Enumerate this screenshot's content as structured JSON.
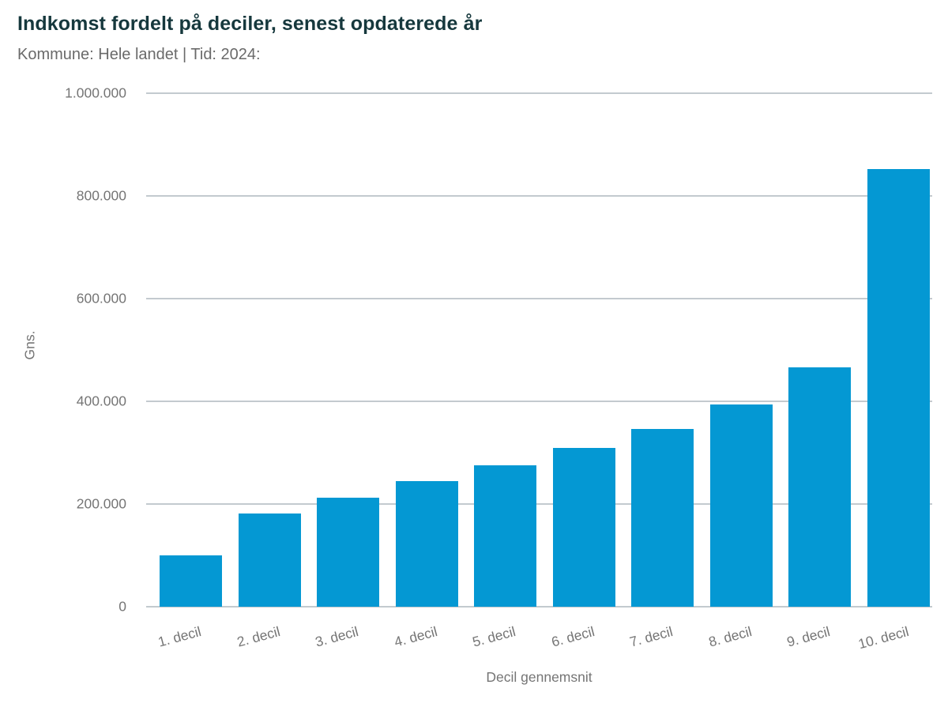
{
  "header": {
    "title": "Indkomst fordelt på deciler, senest opdaterede år",
    "subtitle": "Kommune: Hele landet | Tid: 2024:"
  },
  "chart_data": {
    "type": "bar",
    "title": "Indkomst fordelt på deciler, senest opdaterede år",
    "subtitle": "Kommune: Hele landet | Tid: 2024:",
    "categories": [
      "1. decil",
      "2. decil",
      "3. decil",
      "4. decil",
      "5. decil",
      "6. decil",
      "7. decil",
      "8. decil",
      "9. decil",
      "10. decil"
    ],
    "values": [
      100000,
      181000,
      212000,
      245000,
      276000,
      310000,
      346000,
      394000,
      466000,
      852000
    ],
    "xlabel": "Decil gennemsnit",
    "ylabel": "Gns.",
    "ylim": [
      0,
      1000000
    ],
    "ytick_interval": 200000,
    "yticks": [
      {
        "value": 0,
        "label": "0"
      },
      {
        "value": 200000,
        "label": "200.000"
      },
      {
        "value": 400000,
        "label": "400.000"
      },
      {
        "value": 600000,
        "label": "600.000"
      },
      {
        "value": 800000,
        "label": "800.000"
      },
      {
        "value": 1000000,
        "label": "1.000.000"
      }
    ],
    "grid": "horizontal",
    "legend": "none",
    "colors": {
      "bar": "#0498d3",
      "gridline": "#c3cacf",
      "tick_text": "#757575",
      "title_text": "#16383d",
      "subtitle_text": "#6a6a6a"
    }
  }
}
